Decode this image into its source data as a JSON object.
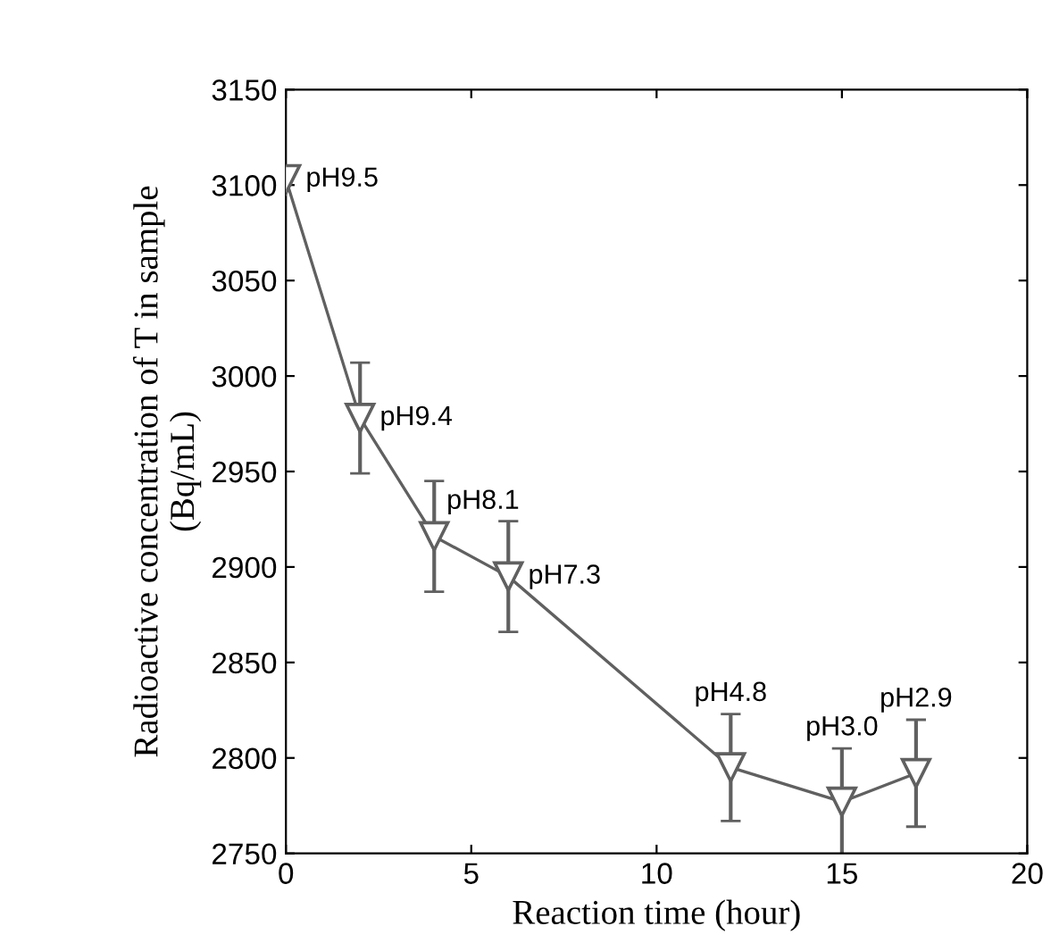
{
  "chart_data": {
    "type": "line",
    "xlabel": "Reaction time (hour)",
    "ylabel": "Radioactive concentration of T in sample\n(Bq/mL)",
    "x": [
      0,
      2,
      4,
      6,
      12,
      15,
      17
    ],
    "series": [
      {
        "color": "#606060",
        "values": [
          3103,
          2978,
          2916,
          2895,
          2795,
          2777,
          2792
        ],
        "errors": [
          null,
          29,
          29,
          29,
          28,
          28,
          28
        ],
        "value_labels": [
          "pH9.5",
          "pH9.4",
          "pH8.1",
          "pH7.3",
          "pH4.8",
          "pH3.0",
          "pH2.9"
        ]
      }
    ],
    "marker": "triangle",
    "xlim": [
      0,
      20
    ],
    "xticks": [
      0,
      5,
      10,
      15,
      20
    ],
    "ylim": [
      2750,
      3150
    ],
    "yticks": [
      2750,
      2800,
      2850,
      2900,
      2950,
      3000,
      3050,
      3100,
      3150
    ],
    "grid": false,
    "legend": false
  }
}
